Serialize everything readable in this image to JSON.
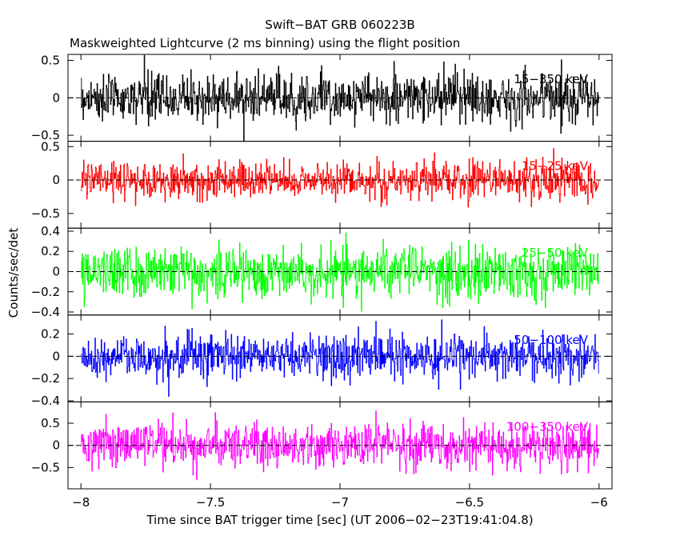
{
  "chart_data": {
    "type": "line",
    "title": "Swift−BAT GRB 060223B",
    "subtitle": "Maskweighted Lightcurve (2 ms binning) using the flight position",
    "xlabel": "Time since BAT trigger time [sec] (UT 2006−02−23T19:41:04.8)",
    "ylabel": "Counts/sec/det",
    "xlim": [
      -8.05,
      -5.95
    ],
    "x_ticks": [
      -8,
      -7.5,
      -7,
      -6.5,
      -6
    ],
    "x_tick_labels": [
      "−8",
      "−7.5",
      "−7",
      "−6.5",
      "−6"
    ],
    "x_start": -8.0,
    "x_end": -6.0,
    "bin_width_s": 0.002,
    "panels": [
      {
        "name": "15−350 keV",
        "color": "#000000",
        "ylim": [
          -0.58,
          0.58
        ],
        "y_ticks": [
          -0.5,
          0,
          0.5
        ],
        "y_tick_labels": [
          "−0.5",
          "0",
          "0.5"
        ],
        "noise_sigma": 0.16
      },
      {
        "name": "15−25 keV",
        "color": "#ff0000",
        "ylim": [
          -0.72,
          0.58
        ],
        "y_ticks": [
          -0.5,
          0,
          0.5
        ],
        "y_tick_labels": [
          "−0.5",
          "0",
          "0.5"
        ],
        "noise_sigma": 0.14
      },
      {
        "name": "25−50 keV",
        "color": "#00ff00",
        "ylim": [
          -0.43,
          0.43
        ],
        "y_ticks": [
          -0.4,
          -0.2,
          0,
          0.2,
          0.4
        ],
        "y_tick_labels": [
          "−0.4",
          "−0.2",
          "0",
          "0.2",
          "0.4"
        ],
        "noise_sigma": 0.13
      },
      {
        "name": "50−100 keV",
        "color": "#0000ff",
        "ylim": [
          -0.41,
          0.37
        ],
        "y_ticks": [
          -0.4,
          -0.2,
          0,
          0.2
        ],
        "y_tick_labels": [
          "−0.4",
          "−0.2",
          "0",
          "0.2"
        ],
        "noise_sigma": 0.1
      },
      {
        "name": "100−350 keV",
        "color": "#ff00ff",
        "ylim": [
          -0.98,
          0.98
        ],
        "y_ticks": [
          -0.5,
          0,
          0.5
        ],
        "y_tick_labels": [
          "−0.5",
          "0",
          "0.5"
        ],
        "noise_sigma": 0.25
      }
    ]
  }
}
